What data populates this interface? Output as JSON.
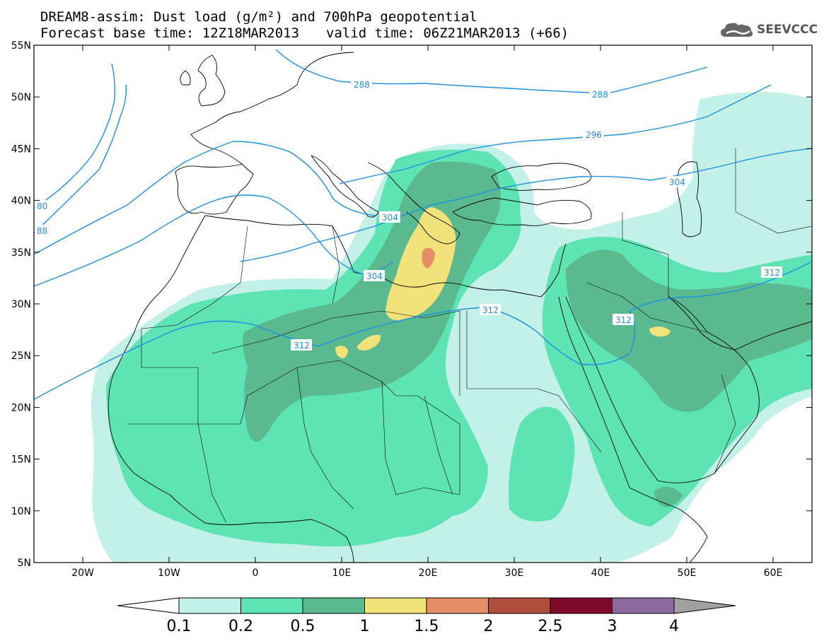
{
  "title_line1": "DREAM8-assim: Dust load (g/m²) and 700hPa geopotential",
  "title_line2_base": "Forecast base time: 12Z18MAR2013",
  "title_line2_valid": "valid time: 06Z21MAR2013 (+66)",
  "logo_text": "SEEVCCC",
  "lat_labels": [
    "55N",
    "50N",
    "45N",
    "40N",
    "35N",
    "30N",
    "25N",
    "20N",
    "15N",
    "10N",
    "5N"
  ],
  "lon_labels": [
    "20W",
    "10W",
    "0",
    "10E",
    "20E",
    "30E",
    "40E",
    "50E",
    "60E"
  ],
  "contour_labels": [
    "288",
    "288",
    "296",
    "304",
    "304",
    "312",
    "312",
    "312",
    "312",
    "80",
    "88",
    "304"
  ],
  "legend": {
    "ticks": [
      "0.1",
      "0.2",
      "0.5",
      "1",
      "1.5",
      "2",
      "2.5",
      "3",
      "4"
    ],
    "colors": [
      "#c3f1e8",
      "#5ee3b4",
      "#5bb98f",
      "#f1e37a",
      "#e88e67",
      "#b04d3b",
      "#7f0a2a",
      "#8c6aa0",
      "#a0a0a0"
    ]
  }
}
